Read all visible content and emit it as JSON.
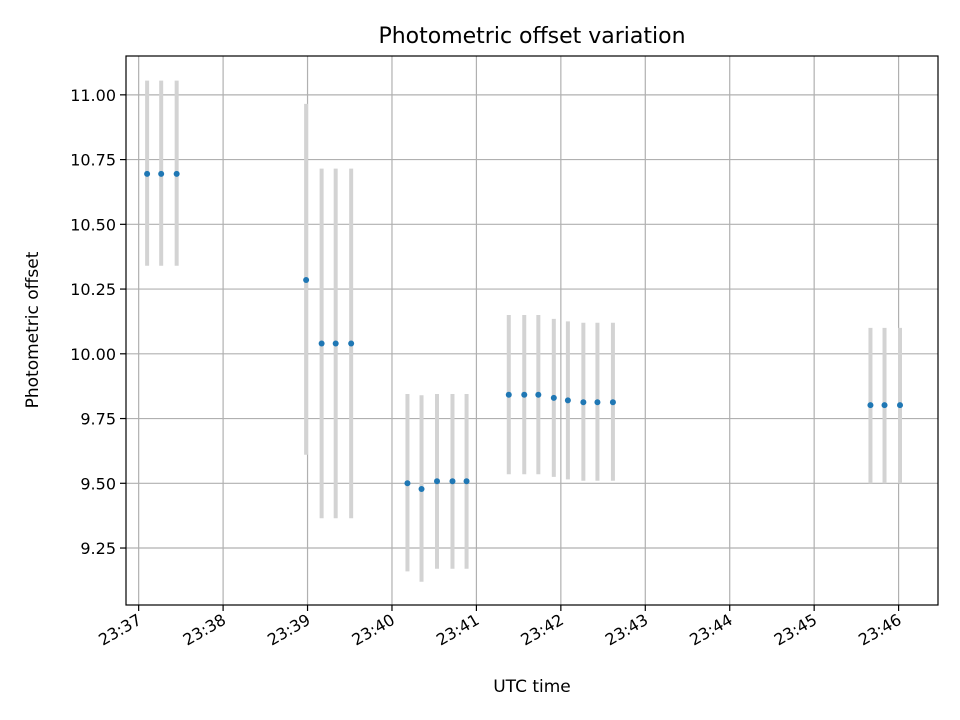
{
  "chart_data": {
    "type": "scatter",
    "title": "Photometric offset variation",
    "xlabel": "UTC time",
    "ylabel": "Photometric offset",
    "grid": true,
    "xlim": [
      "23:36:51",
      "23:46:28"
    ],
    "ylim": [
      9.03,
      11.15
    ],
    "x_ticks": [
      "23:37",
      "23:38",
      "23:39",
      "23:40",
      "23:41",
      "23:42",
      "23:43",
      "23:44",
      "23:45",
      "23:46"
    ],
    "y_ticks": [
      "9.25",
      "9.50",
      "9.75",
      "10.00",
      "10.25",
      "10.50",
      "10.75",
      "11.00"
    ],
    "point_color": "#1f77b4",
    "errorbar_color": "#d3d3d3",
    "series": [
      {
        "points": [
          {
            "x": "23:37:06",
            "y": 10.695,
            "ylow": 10.34,
            "yhigh": 11.055
          },
          {
            "x": "23:37:16",
            "y": 10.695,
            "ylow": 10.34,
            "yhigh": 11.055
          },
          {
            "x": "23:37:27",
            "y": 10.695,
            "ylow": 10.34,
            "yhigh": 11.055
          },
          {
            "x": "23:38:59",
            "y": 10.285,
            "ylow": 9.61,
            "yhigh": 10.965
          },
          {
            "x": "23:39:10",
            "y": 10.04,
            "ylow": 9.365,
            "yhigh": 10.715
          },
          {
            "x": "23:39:20",
            "y": 10.04,
            "ylow": 9.365,
            "yhigh": 10.715
          },
          {
            "x": "23:39:31",
            "y": 10.04,
            "ylow": 9.365,
            "yhigh": 10.715
          },
          {
            "x": "23:40:11",
            "y": 9.5,
            "ylow": 9.16,
            "yhigh": 9.845
          },
          {
            "x": "23:40:21",
            "y": 9.478,
            "ylow": 9.12,
            "yhigh": 9.84
          },
          {
            "x": "23:40:32",
            "y": 9.508,
            "ylow": 9.17,
            "yhigh": 9.845
          },
          {
            "x": "23:40:43",
            "y": 9.508,
            "ylow": 9.17,
            "yhigh": 9.845
          },
          {
            "x": "23:40:53",
            "y": 9.508,
            "ylow": 9.17,
            "yhigh": 9.845
          },
          {
            "x": "23:41:23",
            "y": 9.842,
            "ylow": 9.535,
            "yhigh": 10.15
          },
          {
            "x": "23:41:34",
            "y": 9.842,
            "ylow": 9.535,
            "yhigh": 10.15
          },
          {
            "x": "23:41:44",
            "y": 9.842,
            "ylow": 9.535,
            "yhigh": 10.15
          },
          {
            "x": "23:41:55",
            "y": 9.83,
            "ylow": 9.525,
            "yhigh": 10.135
          },
          {
            "x": "23:42:05",
            "y": 9.82,
            "ylow": 9.515,
            "yhigh": 10.125
          },
          {
            "x": "23:42:16",
            "y": 9.813,
            "ylow": 9.51,
            "yhigh": 10.12
          },
          {
            "x": "23:42:26",
            "y": 9.813,
            "ylow": 9.51,
            "yhigh": 10.12
          },
          {
            "x": "23:42:37",
            "y": 9.813,
            "ylow": 9.51,
            "yhigh": 10.12
          },
          {
            "x": "23:45:40",
            "y": 9.802,
            "ylow": 9.5,
            "yhigh": 10.1
          },
          {
            "x": "23:45:50",
            "y": 9.802,
            "ylow": 9.5,
            "yhigh": 10.1
          },
          {
            "x": "23:46:01",
            "y": 9.802,
            "ylow": 9.5,
            "yhigh": 10.1
          }
        ]
      }
    ]
  }
}
